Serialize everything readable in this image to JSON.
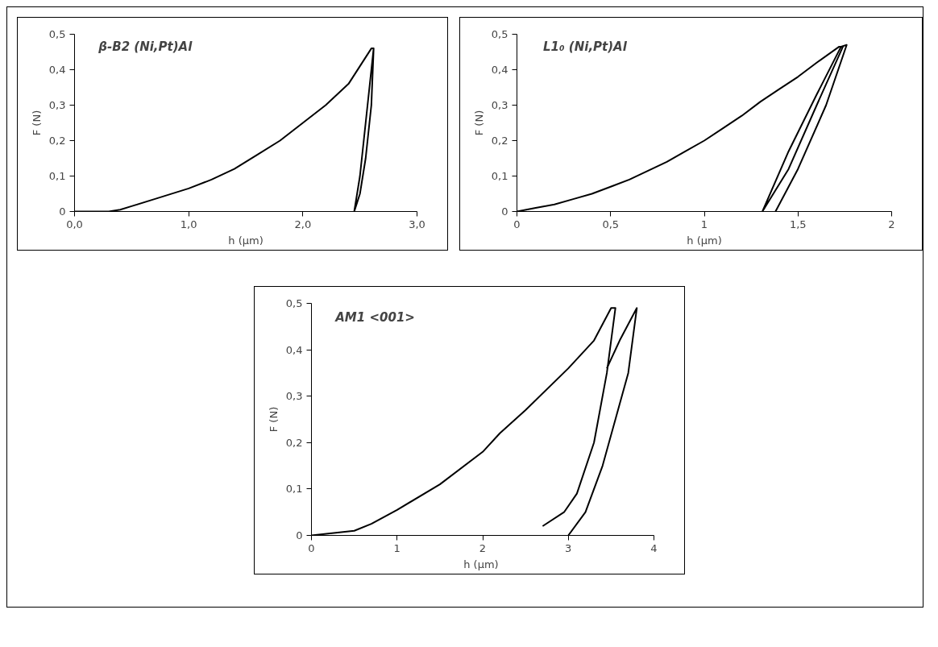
{
  "chart_data": [
    {
      "type": "line",
      "title": "β-B2 (Ni,Pt)Al",
      "xlabel": "h (µm)",
      "ylabel": "F (N)",
      "xlim": [
        0,
        3
      ],
      "ylim": [
        0,
        0.5
      ],
      "xticks": [
        {
          "value": 0,
          "label": "0,0"
        },
        {
          "value": 1,
          "label": "1,0"
        },
        {
          "value": 2,
          "label": "2,0"
        },
        {
          "value": 3,
          "label": "3,0"
        }
      ],
      "yticks": [
        {
          "value": 0,
          "label": "0"
        },
        {
          "value": 0.1,
          "label": "0,1"
        },
        {
          "value": 0.2,
          "label": "0,2"
        },
        {
          "value": 0.3,
          "label": "0,3"
        },
        {
          "value": 0.4,
          "label": "0,4"
        },
        {
          "value": 0.5,
          "label": "0,5"
        }
      ],
      "marker": "none",
      "line_style": "solid",
      "series": [
        {
          "color": "#000000",
          "x": [
            0,
            0.3,
            0.4,
            0.5,
            0.7,
            1.0,
            1.2,
            1.4,
            1.6,
            1.8,
            2.0,
            2.2,
            2.4,
            2.6,
            2.62,
            2.6,
            2.55,
            2.5,
            2.45,
            2.5,
            2.55,
            2.6,
            2.62
          ],
          "values": [
            0,
            0,
            0.005,
            0.015,
            0.035,
            0.065,
            0.09,
            0.12,
            0.16,
            0.2,
            0.25,
            0.3,
            0.36,
            0.46,
            0.46,
            0.3,
            0.15,
            0.05,
            0,
            0.1,
            0.25,
            0.4,
            0.46
          ]
        }
      ]
    },
    {
      "type": "line",
      "title": "L1₀ (Ni,Pt)Al",
      "xlabel": "h (µm)",
      "ylabel": "F (N)",
      "xlim": [
        0,
        2
      ],
      "ylim": [
        0,
        0.5
      ],
      "xticks": [
        {
          "value": 0,
          "label": "0"
        },
        {
          "value": 0.5,
          "label": "0,5"
        },
        {
          "value": 1,
          "label": "1"
        },
        {
          "value": 1.5,
          "label": "1,5"
        },
        {
          "value": 2,
          "label": "2"
        }
      ],
      "yticks": [
        {
          "value": 0,
          "label": "0"
        },
        {
          "value": 0.1,
          "label": "0,1"
        },
        {
          "value": 0.2,
          "label": "0,2"
        },
        {
          "value": 0.3,
          "label": "0,3"
        },
        {
          "value": 0.4,
          "label": "0,4"
        },
        {
          "value": 0.5,
          "label": "0,5"
        }
      ],
      "marker": "none",
      "line_style": "solid",
      "series": [
        {
          "color": "#000000",
          "x": [
            0,
            0.1,
            0.2,
            0.3,
            0.4,
            0.5,
            0.6,
            0.7,
            0.8,
            0.9,
            1.0,
            1.1,
            1.2,
            1.3,
            1.4,
            1.5,
            1.6,
            1.72,
            1.74,
            1.6,
            1.45,
            1.31,
            1.45,
            1.6,
            1.73,
            1.76,
            1.65,
            1.5,
            1.38
          ],
          "values": [
            0,
            0.01,
            0.02,
            0.035,
            0.05,
            0.07,
            0.09,
            0.115,
            0.14,
            0.17,
            0.2,
            0.235,
            0.27,
            0.31,
            0.345,
            0.38,
            0.42,
            0.465,
            0.465,
            0.3,
            0.12,
            0,
            0.17,
            0.33,
            0.465,
            0.47,
            0.3,
            0.12,
            0
          ]
        }
      ]
    },
    {
      "type": "line",
      "title": "AM1 <001>",
      "xlabel": "h  (µm)",
      "ylabel": "F (N)",
      "xlim": [
        0,
        4
      ],
      "ylim": [
        0,
        0.5
      ],
      "xticks": [
        0,
        1,
        2,
        3,
        4
      ],
      "yticks": [
        {
          "value": 0,
          "label": "0"
        },
        {
          "value": 0.1,
          "label": "0,1"
        },
        {
          "value": 0.2,
          "label": "0,2"
        },
        {
          "value": 0.3,
          "label": "0,3"
        },
        {
          "value": 0.4,
          "label": "0,4"
        },
        {
          "value": 0.5,
          "label": "0,5"
        }
      ],
      "marker": "none",
      "line_style": "solid",
      "series": [
        {
          "color": "#000000",
          "x": [
            0,
            0.5,
            0.7,
            1.0,
            1.5,
            2.0,
            2.2,
            2.5,
            3.0,
            3.3,
            3.5,
            3.55,
            3.45,
            3.3,
            3.1,
            2.95,
            2.7
          ],
          "values": [
            0,
            0.01,
            0.025,
            0.055,
            0.11,
            0.18,
            0.22,
            0.27,
            0.36,
            0.42,
            0.49,
            0.49,
            0.35,
            0.2,
            0.09,
            0.05,
            0.02
          ]
        },
        {
          "color": "#000000",
          "x": [
            3.45,
            3.6,
            3.8,
            3.7,
            3.55,
            3.4,
            3.2,
            3.0
          ],
          "values": [
            0.36,
            0.42,
            0.49,
            0.35,
            0.25,
            0.15,
            0.05,
            0
          ]
        }
      ]
    }
  ]
}
